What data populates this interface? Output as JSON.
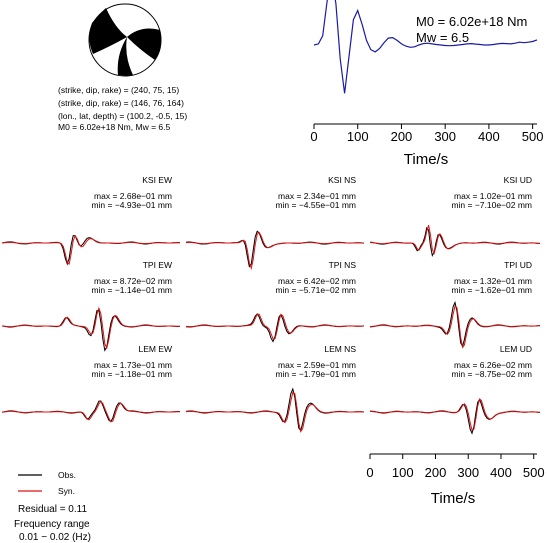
{
  "mechanism": {
    "line1": "(strike, dip, rake) = (240, 75, 15)",
    "line2": "(strike, dip, rake) = (146, 76, 164)",
    "line3": "(lon., lat, depth) = (100.2, -0.5, 15)",
    "line4": "M0 = 6.02e+18 Nm, Mw = 6.5"
  },
  "stf": {
    "m0_text": "M0 = 6.02e+18 Nm",
    "mw_text": "Mw = 6.5"
  },
  "waveforms": {
    "panels": [
      {
        "label": "KSI EW",
        "max": "max = 2.68e−01 mm",
        "min": "min = −4.93e−01 mm"
      },
      {
        "label": "KSI NS",
        "max": "max = 2.34e−01 mm",
        "min": "min = −4.55e−01 mm"
      },
      {
        "label": "KSI UD",
        "max": "max = 1.02e−01 mm",
        "min": "min = −7.10e−02 mm"
      },
      {
        "label": "TPI EW",
        "max": "max = 8.72e−02 mm",
        "min": "min = −1.14e−01 mm"
      },
      {
        "label": "TPI NS",
        "max": "max = 6.42e−02 mm",
        "min": "min = −5.71e−02 mm"
      },
      {
        "label": "TPI UD",
        "max": "max = 1.32e−01 mm",
        "min": "min = −1.62e−01 mm"
      },
      {
        "label": "LEM EW",
        "max": "max = 1.73e−01 mm",
        "min": "min = −1.18e−01 mm"
      },
      {
        "label": "LEM NS",
        "max": "max = 2.59e−01 mm",
        "min": "min = −1.79e−01 mm"
      },
      {
        "label": "LEM UD",
        "max": "max = 6.26e−02 mm",
        "min": "min = −8.75e−02 mm"
      }
    ]
  },
  "legend": {
    "obs": "Obs.",
    "syn": "Syn."
  },
  "info": {
    "residual": "Residual = 0.11",
    "freq_label": "Frequency range",
    "freq_value": "0.01 − 0.02 (Hz)"
  },
  "colors": {
    "stf": "#1a1aaa",
    "obs": "#000000",
    "syn": "#e01010"
  },
  "chart_data": [
    {
      "type": "line",
      "xlabel": "Time/s",
      "xlim": [
        0,
        510
      ],
      "xticks": [
        "0",
        "100",
        "200",
        "300",
        "400",
        "500"
      ],
      "series": [
        {
          "x": [
            0,
            10,
            20,
            30,
            40,
            50,
            60,
            70,
            80,
            90,
            100,
            110,
            120,
            130,
            140,
            150,
            160,
            170,
            180,
            190,
            200,
            210,
            220,
            230,
            240,
            250,
            260,
            270,
            280,
            290,
            300,
            310,
            320,
            330,
            340,
            350,
            360,
            370,
            380,
            390,
            400,
            410,
            420,
            430,
            440,
            450,
            460,
            470,
            480,
            490,
            500,
            510
          ],
          "y": [
            0,
            0.05,
            0.4,
            1.9,
            3.0,
            1.8,
            -0.6,
            -2.1,
            -0.5,
            1.1,
            1.5,
            0.9,
            0.2,
            -0.2,
            -0.3,
            -0.15,
            0.1,
            0.3,
            0.32,
            0.2,
            0.05,
            -0.05,
            -0.1,
            -0.08,
            0,
            0.06,
            0.08,
            0.05,
            0.02,
            0,
            -0.02,
            -0.03,
            -0.02,
            0,
            0.02,
            0.05,
            0.06,
            0.04,
            0.02,
            0,
            0,
            0.02,
            0.05,
            0.07,
            0.06,
            0.05,
            0.08,
            0.12,
            0.1,
            0.12,
            0.15,
            0.22
          ]
        }
      ]
    },
    {
      "type": "line",
      "xlabel": "Time/s",
      "xlim": [
        0,
        510
      ],
      "xticks": [
        "0",
        "100",
        "200",
        "300",
        "400",
        "500"
      ],
      "series": [
        {
          "name": "Obs."
        },
        {
          "name": "Syn."
        }
      ]
    }
  ]
}
